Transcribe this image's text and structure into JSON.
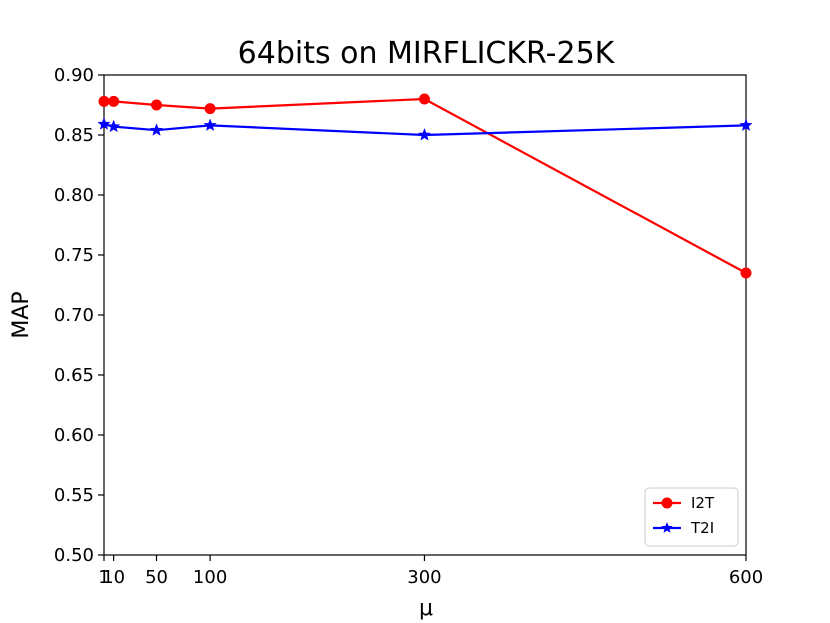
{
  "chart_data": {
    "type": "line",
    "title": "64bits on MIRFLICKR-25K",
    "xlabel": "μ",
    "ylabel": "MAP",
    "x": [
      1,
      10,
      50,
      100,
      300,
      600
    ],
    "xticks": [
      1,
      10,
      50,
      100,
      300,
      600
    ],
    "xtick_labels": [
      "1",
      "10",
      "50",
      "100",
      "300",
      "600"
    ],
    "xlim": [
      1,
      600
    ],
    "ylim": [
      0.5,
      0.9
    ],
    "yticks": [
      0.5,
      0.55,
      0.6,
      0.65,
      0.7,
      0.75,
      0.8,
      0.85,
      0.9
    ],
    "ytick_labels": [
      "0.50",
      "0.55",
      "0.60",
      "0.65",
      "0.70",
      "0.75",
      "0.80",
      "0.85",
      "0.90"
    ],
    "series": [
      {
        "name": "I2T",
        "color": "#ff0000",
        "marker": "circle",
        "values": [
          0.878,
          0.878,
          0.875,
          0.872,
          0.88,
          0.735
        ]
      },
      {
        "name": "T2I",
        "color": "#0000ff",
        "marker": "star",
        "values": [
          0.859,
          0.857,
          0.854,
          0.858,
          0.85,
          0.858
        ]
      }
    ],
    "legend": "lower-right",
    "grid": false
  }
}
